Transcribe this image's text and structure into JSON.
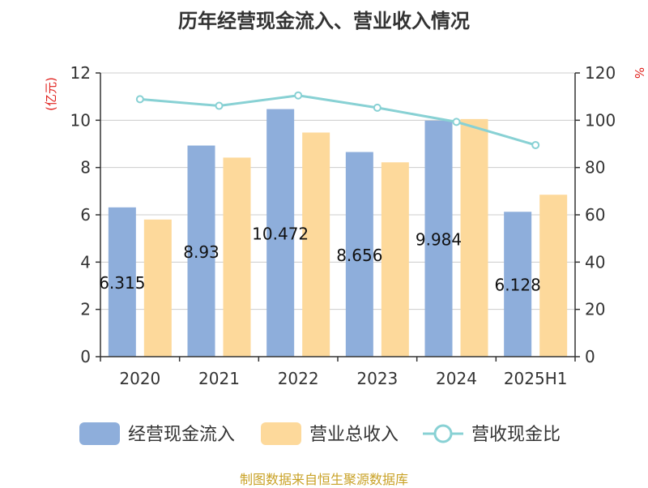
{
  "chart_data": {
    "type": "bar",
    "title": "历年经营现金流入、营业收入情况",
    "categories": [
      "2020",
      "2021",
      "2022",
      "2023",
      "2024",
      "2025H1"
    ],
    "series": [
      {
        "name": "经营现金流入",
        "type": "bar",
        "axis": "left",
        "color": "#8eaedb",
        "values": [
          6.315,
          8.93,
          10.472,
          8.656,
          9.984,
          6.128
        ],
        "labels": [
          "6.315",
          "8.93",
          "10.472",
          "8.656",
          "9.984",
          "6.128"
        ]
      },
      {
        "name": "营业总收入",
        "type": "bar",
        "axis": "left",
        "color": "#fdd99b",
        "values": [
          5.8,
          8.42,
          9.48,
          8.22,
          10.05,
          6.85
        ]
      },
      {
        "name": "营收现金比",
        "type": "line",
        "axis": "right",
        "color": "#88d1d4",
        "values": [
          108.9,
          106.1,
          110.5,
          105.3,
          99.3,
          89.5
        ]
      }
    ],
    "y_left": {
      "label": "(亿元)",
      "range": [
        0,
        12
      ],
      "ticks": [
        "0",
        "2",
        "4",
        "6",
        "8",
        "10",
        "12"
      ]
    },
    "y_right": {
      "label": "%",
      "range": [
        0,
        120
      ],
      "ticks": [
        "0",
        "20",
        "40",
        "60",
        "80",
        "100",
        "120"
      ]
    },
    "grid": true,
    "legend_position": "bottom"
  },
  "footer": {
    "source": "制图数据来自恒生聚源数据库"
  }
}
